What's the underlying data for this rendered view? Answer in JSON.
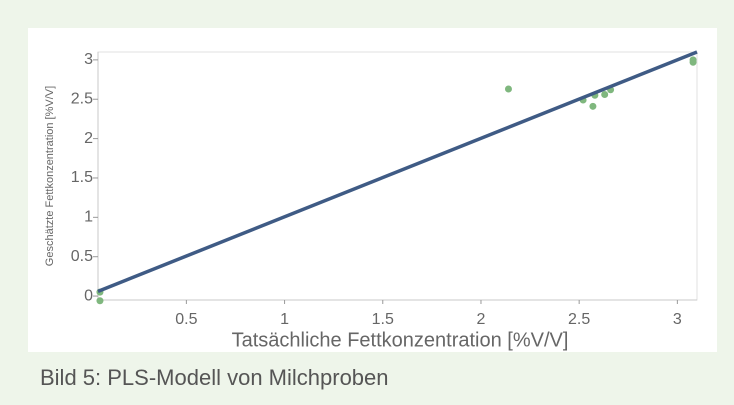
{
  "chart_data": {
    "type": "scatter",
    "xlabel": "Tatsächliche Fettkonzentration [%V/V]",
    "ylabel": "Geschätzte Fettkonzentration [%V/V]",
    "x": [
      0.06,
      0.06,
      2.14,
      2.52,
      2.57,
      2.58,
      2.63,
      2.66,
      3.08,
      3.08
    ],
    "values": [
      -0.06,
      0.05,
      2.63,
      2.49,
      2.41,
      2.55,
      2.56,
      2.62,
      3.0,
      2.97
    ],
    "color": "#7fb77e",
    "fit_line": {
      "x": [
        0.05,
        3.1
      ],
      "values": [
        0.06,
        3.1
      ],
      "color": "#3f5b85"
    },
    "xlim": [
      0.05,
      3.1
    ],
    "xticks": [
      0.5,
      1,
      1.5,
      2,
      2.5,
      3
    ],
    "ylim": [
      -0.05,
      3.1
    ],
    "yticks": [
      0,
      0.5,
      1,
      1.5,
      2,
      2.5,
      3
    ]
  },
  "caption": "Bild 5: PLS-Modell von Milchproben"
}
